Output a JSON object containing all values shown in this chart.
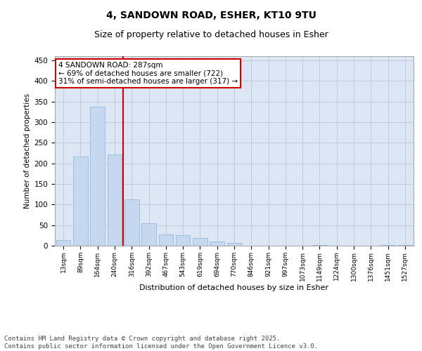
{
  "title_line1": "4, SANDOWN ROAD, ESHER, KT10 9TU",
  "title_line2": "Size of property relative to detached houses in Esher",
  "xlabel": "Distribution of detached houses by size in Esher",
  "ylabel": "Number of detached properties",
  "categories": [
    "13sqm",
    "89sqm",
    "164sqm",
    "240sqm",
    "316sqm",
    "392sqm",
    "467sqm",
    "543sqm",
    "619sqm",
    "694sqm",
    "770sqm",
    "846sqm",
    "921sqm",
    "997sqm",
    "1073sqm",
    "1149sqm",
    "1224sqm",
    "1300sqm",
    "1376sqm",
    "1451sqm",
    "1527sqm"
  ],
  "values": [
    14,
    216,
    338,
    222,
    112,
    54,
    27,
    26,
    19,
    10,
    6,
    0,
    0,
    0,
    0,
    1,
    0,
    0,
    0,
    1,
    2
  ],
  "bar_color": "#c5d8f0",
  "bar_edge_color": "#8ab4d4",
  "vline_x": 3.5,
  "vline_color": "#cc0000",
  "annotation_text": "4 SANDOWN ROAD: 287sqm\n← 69% of detached houses are smaller (722)\n31% of semi-detached houses are larger (317) →",
  "annotation_box_color": "#cc0000",
  "ylim": [
    0,
    460
  ],
  "yticks": [
    0,
    50,
    100,
    150,
    200,
    250,
    300,
    350,
    400,
    450
  ],
  "grid_color": "#c0ccd8",
  "background_color": "#dce6f5",
  "footer_text": "Contains HM Land Registry data © Crown copyright and database right 2025.\nContains public sector information licensed under the Open Government Licence v3.0.",
  "footer_fontsize": 6.5,
  "title_fontsize1": 10,
  "title_fontsize2": 9,
  "ann_fontsize": 7.5
}
